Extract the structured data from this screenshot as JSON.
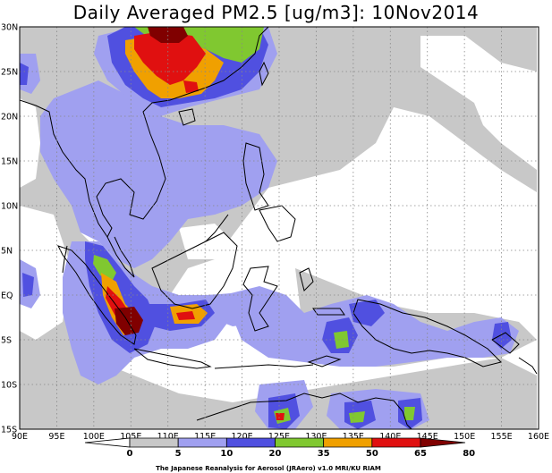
{
  "title": "Daily Averaged PM2.5 [ug/m3]: 10Nov2014",
  "map": {
    "lon_range": [
      90,
      160
    ],
    "lat_range": [
      -15,
      30
    ],
    "lon_ticks": [
      {
        "value": 90,
        "label": "90E"
      },
      {
        "value": 95,
        "label": "95E"
      },
      {
        "value": 100,
        "label": "100E"
      },
      {
        "value": 105,
        "label": "105E"
      },
      {
        "value": 110,
        "label": "110E"
      },
      {
        "value": 115,
        "label": "115E"
      },
      {
        "value": 120,
        "label": "120E"
      },
      {
        "value": 125,
        "label": "125E"
      },
      {
        "value": 130,
        "label": "130E"
      },
      {
        "value": 135,
        "label": "135E"
      },
      {
        "value": 140,
        "label": "140E"
      },
      {
        "value": 145,
        "label": "145E"
      },
      {
        "value": 150,
        "label": "150E"
      },
      {
        "value": 155,
        "label": "155E"
      },
      {
        "value": 160,
        "label": "160E"
      }
    ],
    "lat_ticks": [
      {
        "value": 30,
        "label": "30N"
      },
      {
        "value": 25,
        "label": "25N"
      },
      {
        "value": 20,
        "label": "20N"
      },
      {
        "value": 15,
        "label": "15N"
      },
      {
        "value": 10,
        "label": "10N"
      },
      {
        "value": 5,
        "label": "5N"
      },
      {
        "value": 0,
        "label": "EQ"
      },
      {
        "value": -5,
        "label": "5S"
      },
      {
        "value": -10,
        "label": "10S"
      },
      {
        "value": -15,
        "label": "15S"
      }
    ],
    "grid": true
  },
  "colorbar": {
    "levels": [
      "0",
      "5",
      "10",
      "20",
      "35",
      "50",
      "65",
      "80"
    ],
    "colors": [
      "#ffffff",
      "#c8c8c8",
      "#a0a0f0",
      "#5050e0",
      "#80c830",
      "#f0a000",
      "#e01010",
      "#800000"
    ],
    "credit": "The Japanese Reanalysis for Aerosol (JRAero) v1.0 MRI/KU RIAM"
  }
}
